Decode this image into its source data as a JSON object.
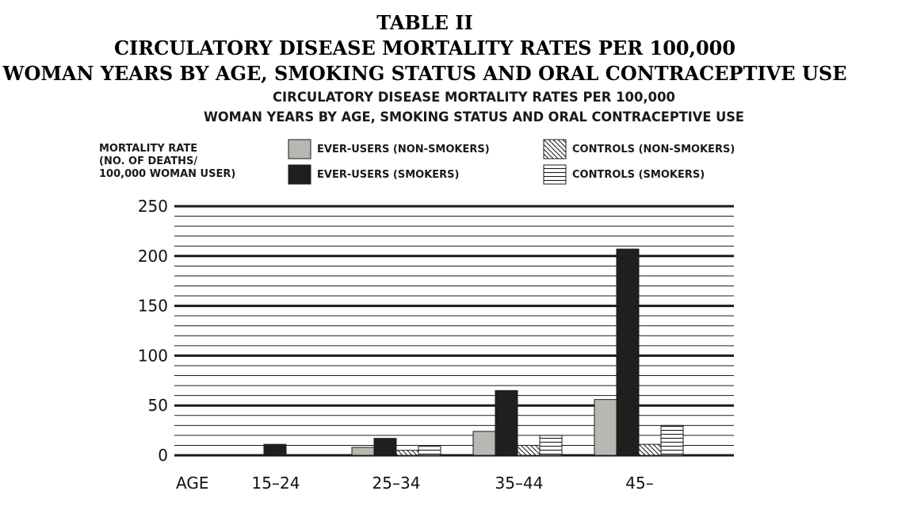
{
  "table_title": {
    "line1": "TABLE II",
    "line2": "CIRCULATORY DISEASE MORTALITY RATES PER 100,000",
    "line3": "WOMAN YEARS BY AGE, SMOKING STATUS AND ORAL CONTRACEPTIVE USE"
  },
  "colors": {
    "ever_nonsmokers": "#b9b7b1",
    "ever_smokers": "#1f1f1f",
    "grid": "#1a1a1a"
  },
  "chart_data": {
    "type": "bar",
    "title_line1": "CIRCULATORY DISEASE MORTALITY RATES PER 100,000",
    "title_line2": "WOMAN YEARS BY AGE, SMOKING STATUS AND ORAL CONTRACEPTIVE USE",
    "ylabel": [
      "MORTALITY RATE",
      "(NO. OF DEATHS/",
      "100,000 WOMAN USER)"
    ],
    "xlabel": "AGE",
    "categories": [
      "15–24",
      "25–34",
      "35–44",
      "45–"
    ],
    "ylim": [
      0,
      250
    ],
    "yticks": [
      0,
      50,
      100,
      150,
      200,
      250
    ],
    "grid": true,
    "legend_position": "top",
    "series": [
      {
        "name": "EVER-USERS (NON-SMOKERS)",
        "pattern": "solid-gray",
        "values": [
          0,
          8,
          24,
          56
        ]
      },
      {
        "name": "EVER-USERS (SMOKERS)",
        "pattern": "solid-black",
        "values": [
          11,
          17,
          65,
          207
        ]
      },
      {
        "name": "CONTROLS (NON-SMOKERS)",
        "pattern": "diagonal-hatch",
        "values": [
          0,
          5,
          10,
          11
        ]
      },
      {
        "name": "CONTROLS (SMOKERS)",
        "pattern": "horizontal-hatch",
        "values": [
          0,
          9,
          20,
          30
        ]
      }
    ]
  }
}
